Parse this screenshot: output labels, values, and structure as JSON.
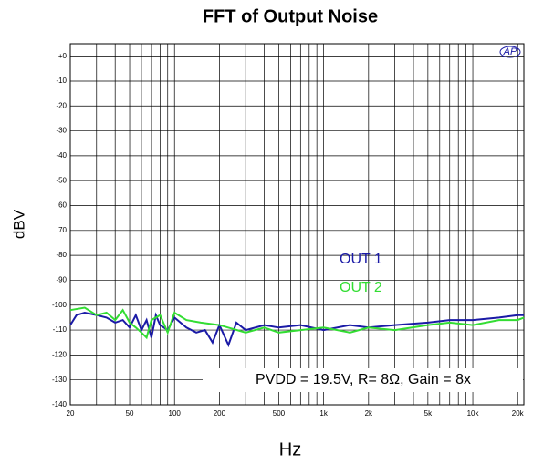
{
  "chart_data": {
    "type": "line",
    "title": "FFT of Output Noise",
    "xlabel": "Hz",
    "ylabel": "dBV",
    "logo": "AP",
    "annotation": "PVDD = 19.5V, R= 8Ω, Gain = 8x",
    "xscale": "log",
    "grid": true,
    "xlim": [
      20,
      22000
    ],
    "ylim": [
      -140,
      5
    ],
    "xticks": [
      20,
      50,
      100,
      200,
      500,
      {
        "value": 1000,
        "label": "1k"
      },
      {
        "value": 2000,
        "label": "2k"
      },
      {
        "value": 5000,
        "label": "5k"
      },
      {
        "value": 10000,
        "label": "10k"
      },
      {
        "value": 20000,
        "label": "20k"
      }
    ],
    "xgrid": [
      30,
      40,
      60,
      70,
      80,
      90,
      300,
      400,
      600,
      700,
      800,
      900,
      3000,
      4000,
      6000,
      7000,
      8000,
      9000
    ],
    "yticks": [
      {
        "value": 0,
        "label": "+0"
      },
      -10,
      -20,
      -30,
      -40,
      -50,
      {
        "value": -60,
        "label": "60"
      },
      {
        "value": -70,
        "label": "70"
      },
      -80,
      -90,
      -100,
      -110,
      -120,
      -130,
      -140
    ],
    "series": [
      {
        "name": "OUT 1",
        "color": "#1a1aa6",
        "x": [
          20,
          22,
          25,
          30,
          35,
          40,
          45,
          50,
          55,
          60,
          65,
          70,
          75,
          80,
          90,
          100,
          120,
          140,
          160,
          180,
          200,
          230,
          260,
          300,
          400,
          500,
          700,
          1000,
          1500,
          2000,
          3000,
          5000,
          7000,
          10000,
          15000,
          20000,
          22000
        ],
        "values": [
          -108,
          -104,
          -103,
          -104,
          -105,
          -107,
          -106,
          -109,
          -104,
          -110,
          -106,
          -113,
          -104,
          -108,
          -110,
          -105,
          -109,
          -111,
          -110,
          -115,
          -108,
          -116,
          -107,
          -110,
          -108,
          -109,
          -108,
          -110,
          -108,
          -109,
          -108,
          -107,
          -106,
          -106,
          -105,
          -104,
          -104
        ]
      },
      {
        "name": "OUT 2",
        "color": "#33dd33",
        "x": [
          20,
          25,
          30,
          35,
          40,
          45,
          50,
          55,
          60,
          65,
          70,
          80,
          90,
          100,
          120,
          150,
          200,
          300,
          400,
          500,
          700,
          1000,
          1500,
          2000,
          3000,
          5000,
          7000,
          10000,
          15000,
          20000,
          22000
        ],
        "values": [
          -102,
          -101,
          -104,
          -103,
          -106,
          -102,
          -107,
          -109,
          -111,
          -113,
          -106,
          -104,
          -111,
          -103,
          -106,
          -107,
          -108,
          -111,
          -109,
          -111,
          -110,
          -109,
          -111,
          -109,
          -110,
          -108,
          -107,
          -108,
          -106,
          -106,
          -105
        ]
      }
    ]
  }
}
